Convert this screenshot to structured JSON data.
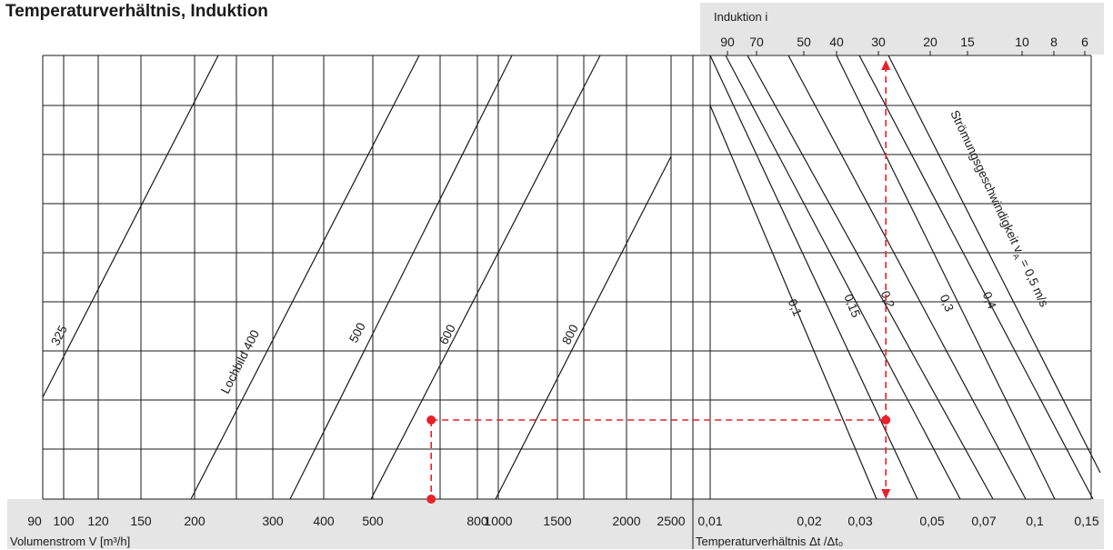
{
  "chart_data": {
    "type": "line",
    "title": "Temperaturverhältnis, Induktion",
    "left_panel": {
      "xlabel": "Volumenstrom V [m³/h]",
      "x_scale": "log",
      "xlim": [
        90,
        2500
      ],
      "x_ticks": [
        "90",
        "100",
        "120",
        "150",
        "200",
        "300",
        "400",
        "500",
        "800",
        "1000",
        "1500",
        "2000",
        "2500"
      ],
      "series": [
        {
          "name": "325",
          "label": "325",
          "x": [
            88,
            237
          ]
        },
        {
          "name": "400",
          "label": "Lochbild 400",
          "x": [
            198,
            458
          ]
        },
        {
          "name": "500",
          "label": "500",
          "x": [
            318,
            563
          ]
        },
        {
          "name": "600",
          "label": "600",
          "x": [
            507,
            658
          ]
        },
        {
          "name": "800",
          "label": "800",
          "x": [
            940,
            2500
          ]
        }
      ]
    },
    "right_panel": {
      "xlabel": "Temperaturverhältnis Δt /Δt₀",
      "x_scale": "log",
      "xlim": [
        0.01,
        0.15
      ],
      "x_ticks": [
        "0,01",
        "0,02",
        "0,03",
        "0,05",
        "0,07",
        "0,1",
        "0,15"
      ],
      "top_axis": {
        "label": "Induktion i",
        "ticks": [
          "90",
          "70",
          "50",
          "40",
          "30",
          "20",
          "15",
          "10",
          "8",
          "6"
        ]
      },
      "velocity_label": "Strömungsgeschwindigkeit v",
      "velocity_subscript": "A",
      "velocity_unit": "= 0,5 m/s",
      "series": [
        {
          "name": "0,1",
          "label": "0,1"
        },
        {
          "name": "0,15",
          "label": "0,15"
        },
        {
          "name": "0,2",
          "label": "0,2"
        },
        {
          "name": "0,3",
          "label": "0,3"
        },
        {
          "name": "0,4",
          "label": "0,4"
        },
        {
          "name": "0,5",
          "label": ""
        }
      ]
    },
    "example": {
      "volume_flow": 650,
      "lochbild": 600,
      "velocity": 0.2,
      "temperature_ratio": 0.036,
      "induction": 29,
      "color": "#e8222a"
    },
    "grid": true,
    "legend": "none"
  }
}
